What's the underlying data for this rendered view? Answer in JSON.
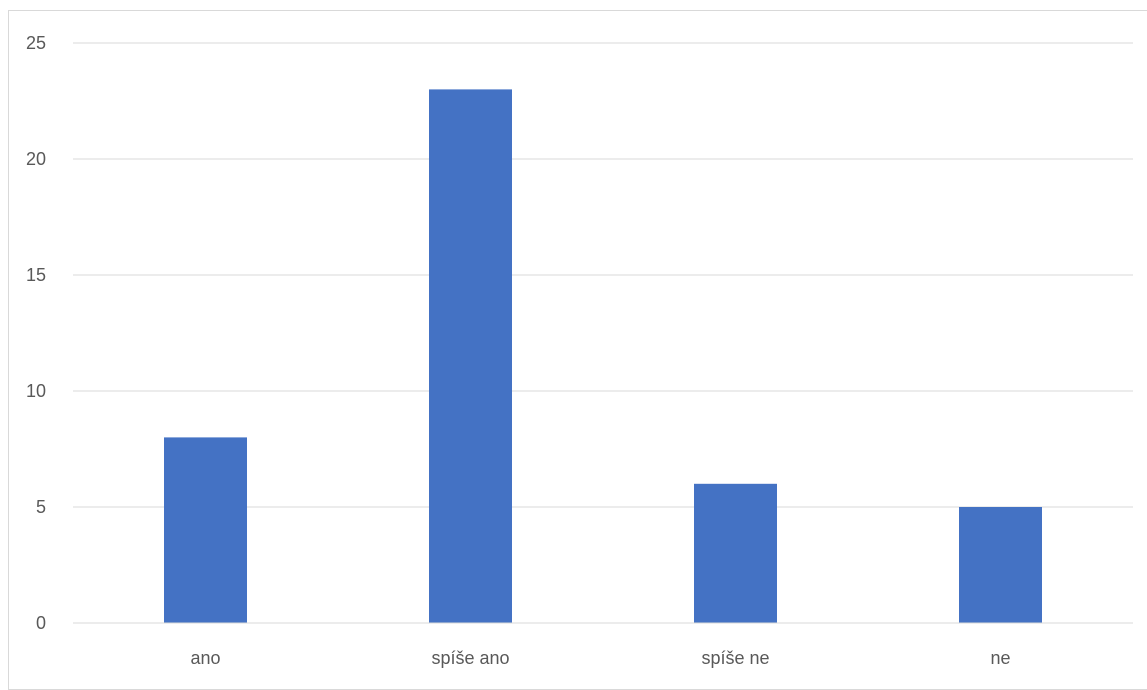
{
  "chart_data": {
    "type": "bar",
    "title": "",
    "xlabel": "",
    "ylabel": "",
    "categories": [
      "ano",
      "spíše ano",
      "spíše ne",
      "ne"
    ],
    "values": [
      8,
      23,
      6,
      5
    ],
    "ylim": [
      0,
      25
    ],
    "yticks": [
      0,
      5,
      10,
      15,
      20,
      25
    ],
    "grid": true,
    "legend": "none",
    "bar_color": "#4472C4",
    "grid_color": "#d9d9d9",
    "axis_color": "#d9d9d9",
    "text_color": "#595959"
  }
}
